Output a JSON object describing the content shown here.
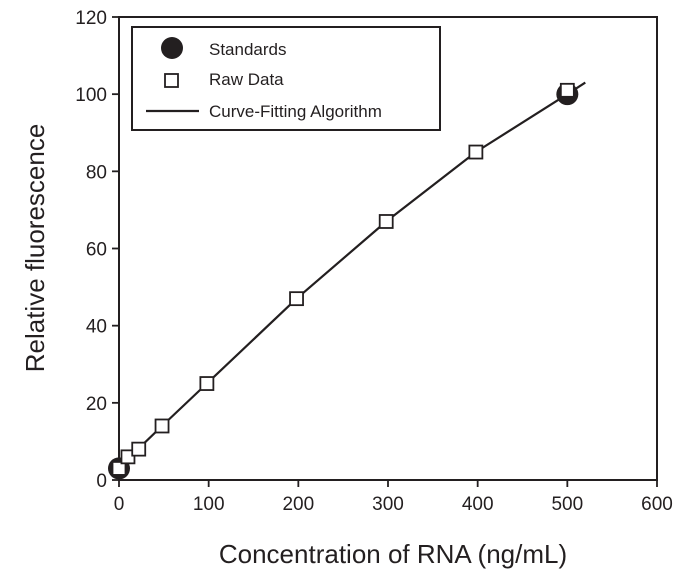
{
  "chart_data": {
    "type": "scatter",
    "title": "",
    "xlabel": "Concentration of RNA (ng/mL)",
    "ylabel": "Relative fluorescence",
    "xlim": [
      0,
      600
    ],
    "ylim": [
      0,
      120
    ],
    "x_ticks": [
      0,
      100,
      200,
      300,
      400,
      500,
      600
    ],
    "y_ticks": [
      0,
      20,
      40,
      60,
      80,
      100,
      120
    ],
    "grid": false,
    "legend_position": "top-left",
    "colors": {
      "ink": "#231f20",
      "background": "#ffffff",
      "marker_fill": "#ffffff"
    },
    "series": [
      {
        "name": "Standards",
        "marker": "filled-circle",
        "x": [
          0,
          500
        ],
        "y": [
          3,
          100
        ]
      },
      {
        "name": "Raw Data",
        "marker": "open-square",
        "x": [
          0,
          10,
          22,
          48,
          98,
          198,
          298,
          398,
          500
        ],
        "y": [
          3,
          6,
          8,
          14,
          25,
          47,
          67,
          85,
          101
        ]
      },
      {
        "name": "Curve-Fitting Algorithm",
        "marker": "line",
        "x": [
          0,
          10,
          22,
          48,
          98,
          198,
          298,
          398,
          500,
          520
        ],
        "y": [
          3,
          5.5,
          8.2,
          14,
          25,
          47,
          67,
          85,
          100,
          103
        ]
      }
    ]
  }
}
